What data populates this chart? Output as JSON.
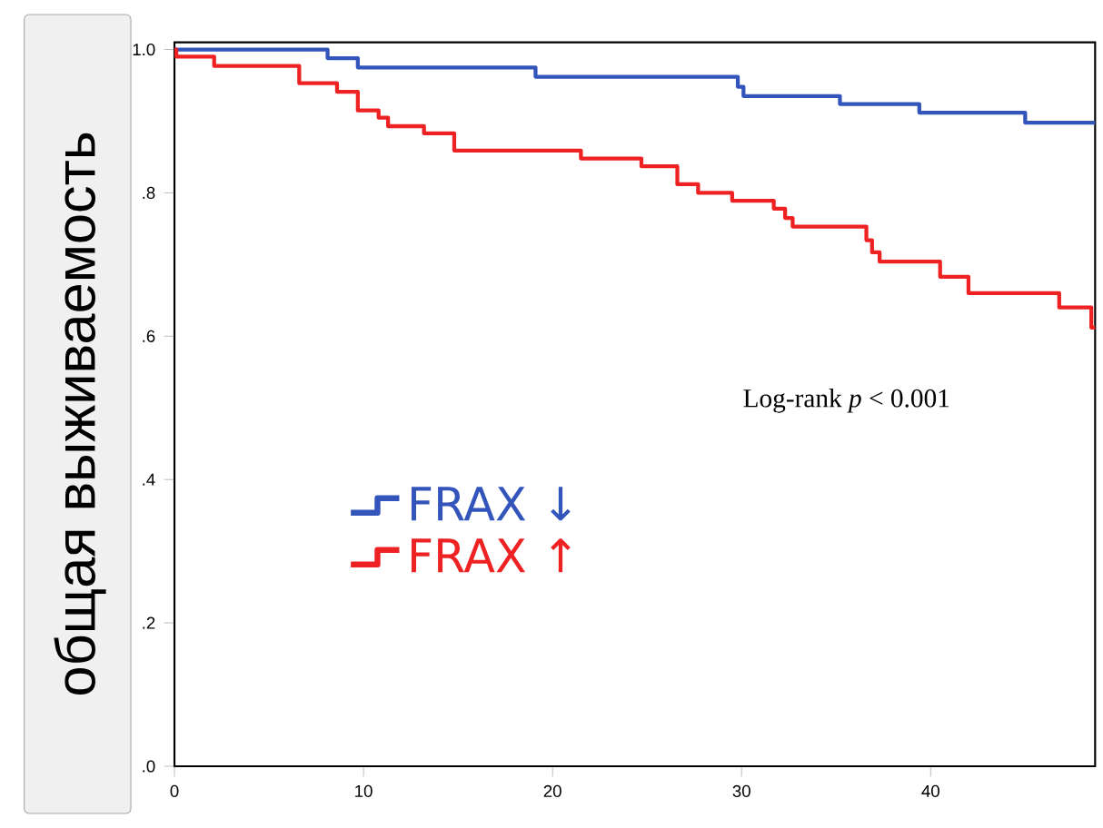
{
  "chart_data": {
    "type": "step",
    "ylabel": "общая выживаемость",
    "annotations": [
      "Log-rank *p* < 0.001"
    ],
    "xlim": [
      0,
      48.7
    ],
    "ylim": [
      0,
      1.01
    ],
    "xticks": [
      0,
      10,
      20,
      30,
      40
    ],
    "yticks": [
      {
        "value": 0,
        "label": ".0"
      },
      {
        "value": 0.2,
        "label": ".2"
      },
      {
        "value": 0.4,
        "label": ".4"
      },
      {
        "value": 0.6,
        "label": ".6"
      },
      {
        "value": 0.8,
        "label": ".8"
      },
      {
        "value": 1.0,
        "label": "1.0"
      }
    ],
    "legend": "left",
    "series": [
      {
        "name": "FRAX ↓",
        "color": "#3355bb",
        "x": [
          0,
          8.1,
          9.7,
          19.1,
          29.8,
          30.1,
          35.2,
          39.4,
          45.0,
          48.7
        ],
        "values": [
          1.0,
          0.988,
          0.975,
          0.962,
          0.948,
          0.935,
          0.924,
          0.912,
          0.898,
          0.898
        ]
      },
      {
        "name": "FRAX ↑",
        "color": "#ee2222",
        "x": [
          0,
          0.1,
          2.1,
          6.6,
          8.6,
          9.7,
          10.8,
          11.3,
          13.2,
          14.8,
          21.5,
          24.7,
          26.6,
          27.7,
          29.5,
          31.7,
          32.3,
          32.7,
          36.6,
          36.9,
          37.3,
          40.5,
          42.0,
          46.8,
          48.5,
          48.7
        ],
        "values": [
          1.0,
          0.99,
          0.977,
          0.953,
          0.941,
          0.915,
          0.905,
          0.893,
          0.883,
          0.859,
          0.848,
          0.837,
          0.812,
          0.8,
          0.789,
          0.778,
          0.765,
          0.753,
          0.734,
          0.717,
          0.704,
          0.683,
          0.66,
          0.64,
          0.612,
          0.612
        ]
      }
    ]
  }
}
